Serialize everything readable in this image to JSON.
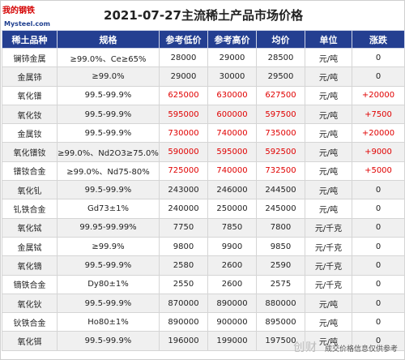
{
  "header": {
    "title": "2021-07-27主流稀土产品市场价格",
    "logo_top": "我的钢铁",
    "logo_brand": "Mysteel.com"
  },
  "table": {
    "columns": [
      "稀土品种",
      "规格",
      "参考低价",
      "参考高价",
      "均价",
      "单位",
      "涨跌"
    ],
    "rows": [
      {
        "name": "镧铈金属",
        "spec": "≥99.0%、Ce≥65%",
        "low": "28000",
        "high": "29000",
        "avg": "28500",
        "unit": "元/吨",
        "change": "0",
        "up": false
      },
      {
        "name": "金属铈",
        "spec": "≥99.0%",
        "low": "29000",
        "high": "30000",
        "avg": "29500",
        "unit": "元/吨",
        "change": "0",
        "up": false
      },
      {
        "name": "氧化镨",
        "spec": "99.5-99.9%",
        "low": "625000",
        "high": "630000",
        "avg": "627500",
        "unit": "元/吨",
        "change": "+20000",
        "up": true
      },
      {
        "name": "氧化钕",
        "spec": "99.5-99.9%",
        "low": "595000",
        "high": "600000",
        "avg": "597500",
        "unit": "元/吨",
        "change": "+7500",
        "up": true
      },
      {
        "name": "金属钕",
        "spec": "99.5-99.9%",
        "low": "730000",
        "high": "740000",
        "avg": "735000",
        "unit": "元/吨",
        "change": "+20000",
        "up": true
      },
      {
        "name": "氧化镨钕",
        "spec": "≥99.0%、Nd2O3≥75.0%",
        "low": "590000",
        "high": "595000",
        "avg": "592500",
        "unit": "元/吨",
        "change": "+9000",
        "up": true
      },
      {
        "name": "镨钕合金",
        "spec": "≥99.0%、Nd75-80%",
        "low": "725000",
        "high": "740000",
        "avg": "732500",
        "unit": "元/吨",
        "change": "+5000",
        "up": true
      },
      {
        "name": "氧化钆",
        "spec": "99.5-99.9%",
        "low": "243000",
        "high": "246000",
        "avg": "244500",
        "unit": "元/吨",
        "change": "0",
        "up": false
      },
      {
        "name": "钆铁合金",
        "spec": "Gd73±1%",
        "low": "240000",
        "high": "250000",
        "avg": "245000",
        "unit": "元/吨",
        "change": "0",
        "up": false
      },
      {
        "name": "氧化铽",
        "spec": "99.95-99.99%",
        "low": "7750",
        "high": "7850",
        "avg": "7800",
        "unit": "元/千克",
        "change": "0",
        "up": false
      },
      {
        "name": "金属铽",
        "spec": "≥99.9%",
        "low": "9800",
        "high": "9900",
        "avg": "9850",
        "unit": "元/千克",
        "change": "0",
        "up": false
      },
      {
        "name": "氧化镝",
        "spec": "99.5-99.9%",
        "low": "2580",
        "high": "2600",
        "avg": "2590",
        "unit": "元/千克",
        "change": "0",
        "up": false
      },
      {
        "name": "镝铁合金",
        "spec": "Dy80±1%",
        "low": "2550",
        "high": "2600",
        "avg": "2575",
        "unit": "元/千克",
        "change": "0",
        "up": false
      },
      {
        "name": "氧化钬",
        "spec": "99.5-99.9%",
        "low": "870000",
        "high": "890000",
        "avg": "880000",
        "unit": "元/吨",
        "change": "0",
        "up": false
      },
      {
        "name": "钬铁合金",
        "spec": "Ho80±1%",
        "low": "890000",
        "high": "900000",
        "avg": "895000",
        "unit": "元/吨",
        "change": "0",
        "up": false
      },
      {
        "name": "氧化铒",
        "spec": "99.5-99.9%",
        "low": "196000",
        "high": "199000",
        "avg": "197500",
        "unit": "元/吨",
        "change": "0",
        "up": false
      }
    ]
  },
  "footer": {
    "watermark": "创财",
    "note": "成交价格信息仅供参考"
  },
  "colors": {
    "header_bg": "#243f91",
    "up": "#e00000"
  }
}
